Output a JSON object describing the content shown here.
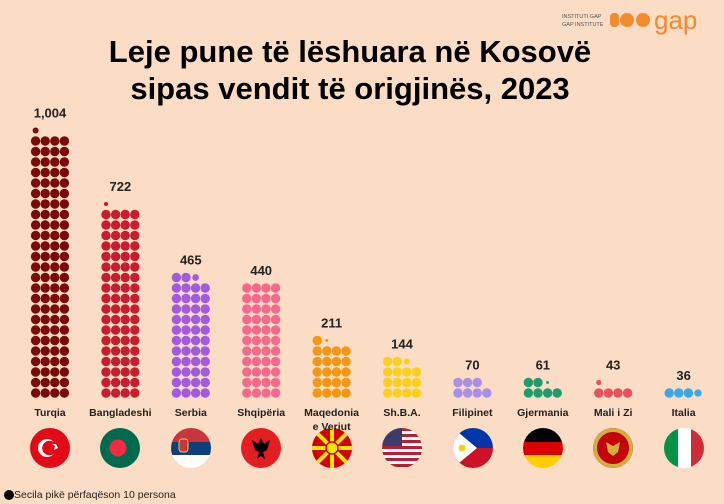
{
  "chart_data": {
    "type": "pictograph",
    "title": "Leje pune të lëshuara në Kosovë sipas vendit të origjinës, 2023",
    "categories": [
      "Turqia",
      "Bangladeshi",
      "Serbia",
      "Shqipëria",
      "Maqedonia e Veriut",
      "Sh.B.A.",
      "Filipinet",
      "Gjermania",
      "Mali i Zi",
      "Italia"
    ],
    "values": [
      1004,
      722,
      465,
      440,
      211,
      144,
      70,
      61,
      43,
      36
    ],
    "value_labels": [
      "1,004",
      "722",
      "465",
      "440",
      "211",
      "144",
      "70",
      "61",
      "43",
      "36"
    ],
    "colors": [
      "#7a0a0a",
      "#c81d2e",
      "#a15be0",
      "#f56a8c",
      "#f7960f",
      "#fbd01c",
      "#a98fe7",
      "#1e9c6b",
      "#e8525c",
      "#3ca6ea"
    ],
    "unit_per_dot": 10,
    "legend": "Secila pikë përfaqëson 10 persona",
    "logo": {
      "line1": "INSTITUTI GAP",
      "line2": "GAP INSTITUTE",
      "mark": "gap"
    }
  }
}
